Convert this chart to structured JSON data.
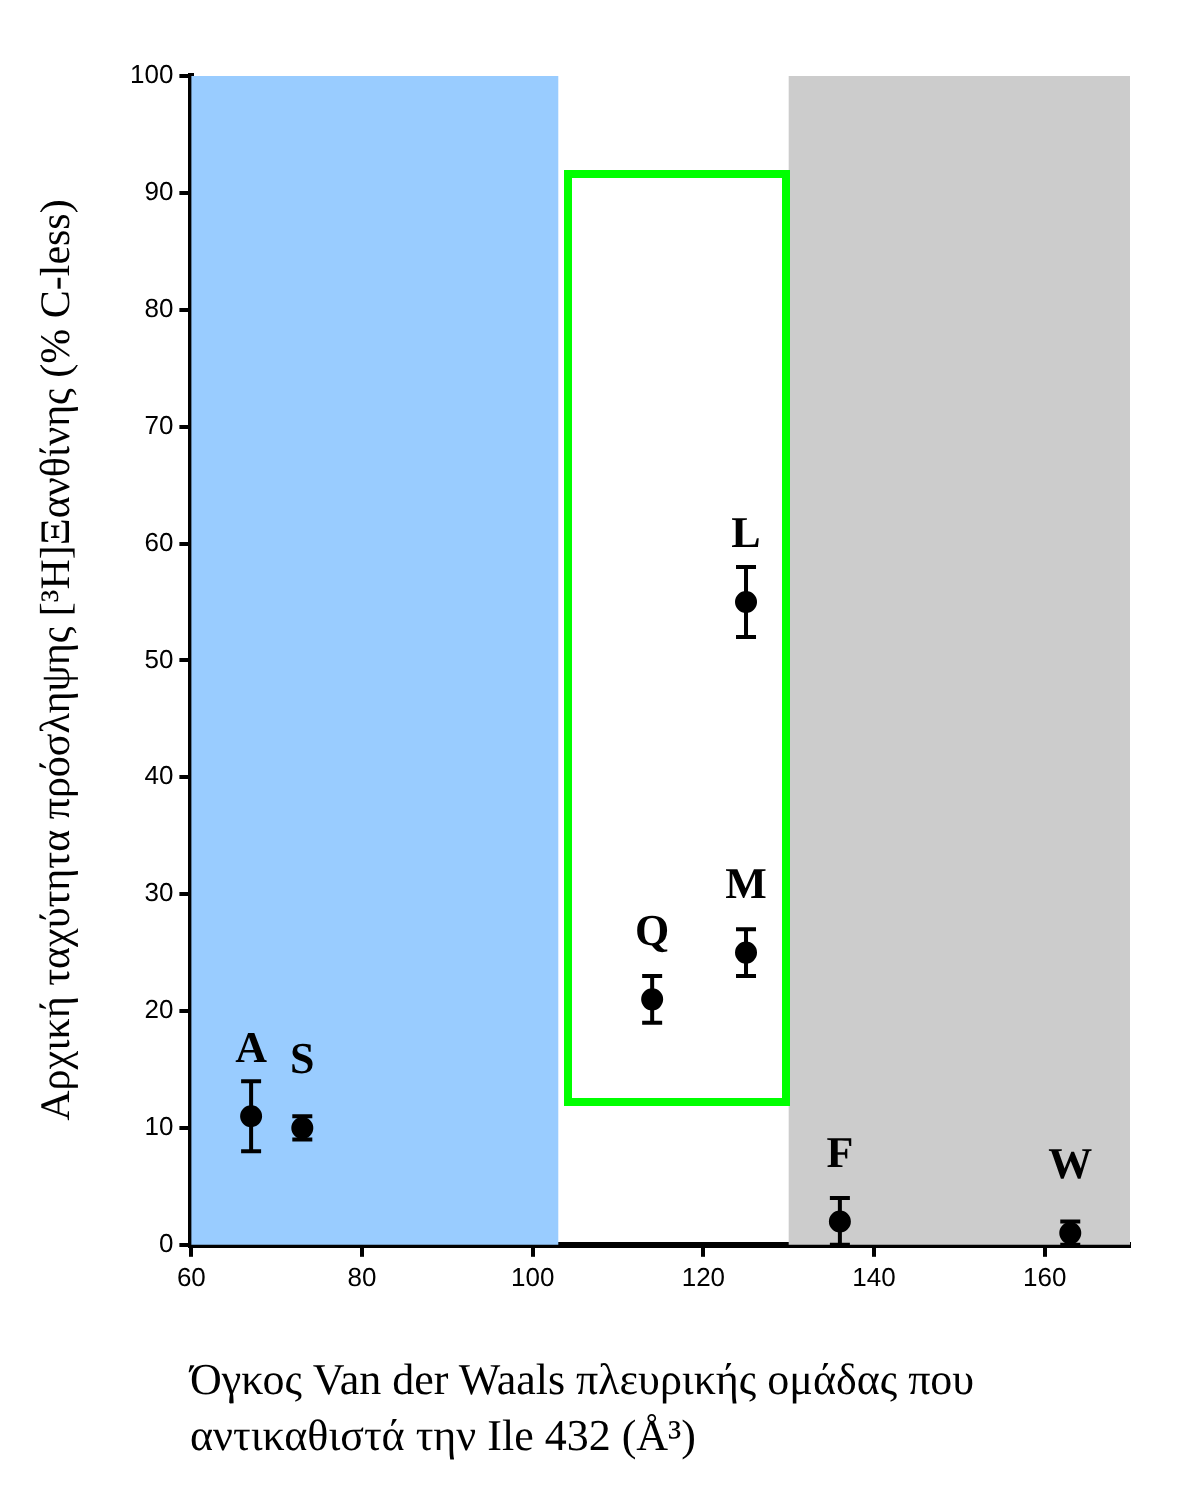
{
  "chart_data": {
    "type": "scatter",
    "xlabel": "Όγκος Van der Waals πλευρικής ομάδας που αντικαθιστά την Ile 432 (Å³)",
    "ylabel": "Αρχική ταχύτητα πρόσληψης [³H]Ξανθίνης (% C-less)",
    "series": [
      {
        "color": "#000000",
        "x": [
          67,
          73,
          114,
          125,
          125,
          136,
          163
        ],
        "values": [
          11,
          10,
          21,
          25,
          55,
          2,
          1
        ],
        "errors": [
          3,
          1,
          2,
          2,
          3,
          2,
          1
        ],
        "value_labels": [
          "A",
          "S",
          "Q",
          "M",
          "L",
          "F",
          "W"
        ]
      }
    ],
    "xlim": [
      60,
      170
    ],
    "xticks": [
      60,
      80,
      100,
      120,
      140,
      160
    ],
    "ylim": [
      0,
      100
    ],
    "yticks": [
      0,
      10,
      20,
      30,
      40,
      50,
      60,
      70,
      80,
      90,
      100
    ],
    "grid": false,
    "legend": false,
    "marker": "circle",
    "bands": [
      {
        "axis": "x",
        "from": 60,
        "to": 103,
        "color": "#99ccff"
      },
      {
        "axis": "x",
        "from": 130,
        "to": 170,
        "color": "#cccccc"
      }
    ]
  }
}
